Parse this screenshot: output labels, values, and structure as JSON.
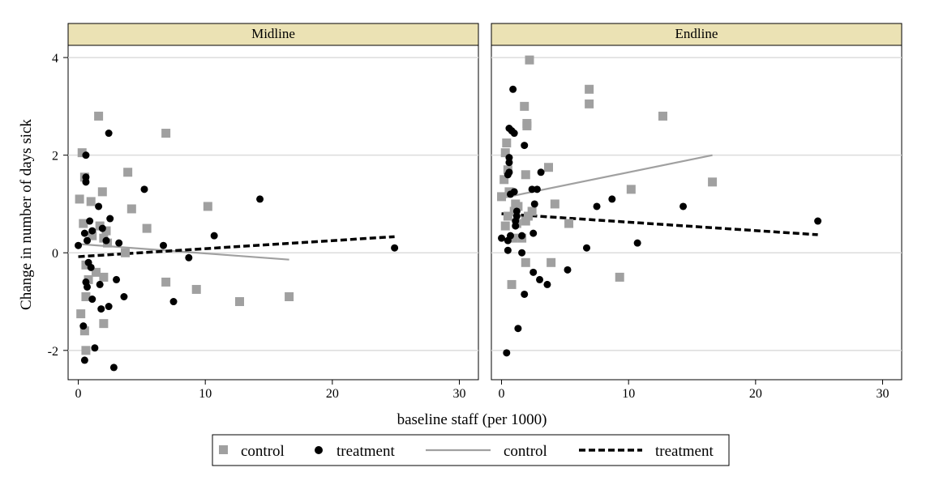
{
  "chart_data": {
    "type": "scatter",
    "xlabel": "baseline staff (per 1000)",
    "ylabel": "Change in number of days sick",
    "xlim": [
      -0.8,
      31.5
    ],
    "ylim": [
      -2.6,
      4.25
    ],
    "xticks": [
      0,
      10,
      20,
      30
    ],
    "yticks": [
      -2,
      0,
      2,
      4
    ],
    "grid": "horizontal",
    "legend_position": "bottom",
    "legend": {
      "items": [
        {
          "label": "control",
          "kind": "marker-square",
          "color": "#a0a0a0"
        },
        {
          "label": "treatment",
          "kind": "marker-circle",
          "color": "#000000"
        },
        {
          "label": "control",
          "kind": "line-solid",
          "color": "#a0a0a0"
        },
        {
          "label": "treatment",
          "kind": "line-dashed",
          "color": "#000000"
        }
      ]
    },
    "colors": {
      "control": "#a0a0a0",
      "treatment": "#000000",
      "strip_fill": "#ebe2b4",
      "grid": "#dcdcdc"
    },
    "panels": [
      {
        "title": "Midline",
        "control_points": [
          {
            "x": 0.1,
            "y": 1.1
          },
          {
            "x": 0.3,
            "y": 2.05
          },
          {
            "x": 0.5,
            "y": 1.55
          },
          {
            "x": 0.4,
            "y": 0.6
          },
          {
            "x": 0.6,
            "y": -0.25
          },
          {
            "x": 0.6,
            "y": -0.9
          },
          {
            "x": 0.5,
            "y": -1.6
          },
          {
            "x": 0.6,
            "y": -2.0
          },
          {
            "x": 0.2,
            "y": -1.25
          },
          {
            "x": 0.8,
            "y": -0.55
          },
          {
            "x": 1.0,
            "y": 1.05
          },
          {
            "x": 1.1,
            "y": 0.35
          },
          {
            "x": 1.4,
            "y": -0.4
          },
          {
            "x": 1.6,
            "y": 2.8
          },
          {
            "x": 1.7,
            "y": 0.55
          },
          {
            "x": 1.9,
            "y": 1.25
          },
          {
            "x": 2.0,
            "y": 0.3
          },
          {
            "x": 2.0,
            "y": -0.5
          },
          {
            "x": 2.0,
            "y": -1.45
          },
          {
            "x": 2.2,
            "y": 0.45
          },
          {
            "x": 2.3,
            "y": 0.2
          },
          {
            "x": 3.7,
            "y": 0.0
          },
          {
            "x": 3.9,
            "y": 1.65
          },
          {
            "x": 4.2,
            "y": 0.9
          },
          {
            "x": 5.4,
            "y": 0.5
          },
          {
            "x": 6.9,
            "y": 2.45
          },
          {
            "x": 6.9,
            "y": -0.6
          },
          {
            "x": 9.3,
            "y": -0.75
          },
          {
            "x": 10.2,
            "y": 0.95
          },
          {
            "x": 12.7,
            "y": -1.0
          },
          {
            "x": 16.6,
            "y": -0.9
          }
        ],
        "treatment_points": [
          {
            "x": 0.0,
            "y": 0.15
          },
          {
            "x": 0.4,
            "y": -1.5
          },
          {
            "x": 0.5,
            "y": -2.2
          },
          {
            "x": 0.5,
            "y": 0.4
          },
          {
            "x": 0.6,
            "y": 1.55
          },
          {
            "x": 0.6,
            "y": 1.45
          },
          {
            "x": 0.6,
            "y": 2.0
          },
          {
            "x": 0.6,
            "y": -0.6
          },
          {
            "x": 0.7,
            "y": 0.25
          },
          {
            "x": 0.7,
            "y": -0.7
          },
          {
            "x": 0.8,
            "y": -0.2
          },
          {
            "x": 0.9,
            "y": 0.65
          },
          {
            "x": 1.0,
            "y": -0.3
          },
          {
            "x": 1.1,
            "y": 0.45
          },
          {
            "x": 1.1,
            "y": -0.95
          },
          {
            "x": 1.3,
            "y": -1.95
          },
          {
            "x": 1.6,
            "y": 0.95
          },
          {
            "x": 1.7,
            "y": -0.65
          },
          {
            "x": 1.8,
            "y": -1.15
          },
          {
            "x": 1.9,
            "y": 0.5
          },
          {
            "x": 2.2,
            "y": 0.25
          },
          {
            "x": 2.4,
            "y": 2.45
          },
          {
            "x": 2.4,
            "y": -1.1
          },
          {
            "x": 2.5,
            "y": 0.7
          },
          {
            "x": 2.8,
            "y": -2.35
          },
          {
            "x": 3.0,
            "y": -0.55
          },
          {
            "x": 3.2,
            "y": 0.2
          },
          {
            "x": 3.6,
            "y": -0.9
          },
          {
            "x": 5.2,
            "y": 1.3
          },
          {
            "x": 6.7,
            "y": 0.15
          },
          {
            "x": 7.5,
            "y": -1.0
          },
          {
            "x": 8.7,
            "y": -0.1
          },
          {
            "x": 10.7,
            "y": 0.35
          },
          {
            "x": 14.3,
            "y": 1.1
          },
          {
            "x": 24.9,
            "y": 0.1
          }
        ],
        "control_fit": {
          "x": [
            0.0,
            16.6
          ],
          "y": [
            0.18,
            -0.14
          ]
        },
        "treatment_fit": {
          "x": [
            0.0,
            24.9
          ],
          "y": [
            -0.08,
            0.33
          ]
        }
      },
      {
        "title": "Endline",
        "control_points": [
          {
            "x": 0.0,
            "y": 1.15
          },
          {
            "x": 0.2,
            "y": 1.5
          },
          {
            "x": 0.3,
            "y": 2.05
          },
          {
            "x": 0.4,
            "y": 2.25
          },
          {
            "x": 0.5,
            "y": 1.7
          },
          {
            "x": 0.3,
            "y": 0.55
          },
          {
            "x": 0.5,
            "y": 0.75
          },
          {
            "x": 0.6,
            "y": 1.25
          },
          {
            "x": 0.8,
            "y": -0.65
          },
          {
            "x": 0.9,
            "y": 0.3
          },
          {
            "x": 1.0,
            "y": 0.85
          },
          {
            "x": 1.1,
            "y": 1.0
          },
          {
            "x": 1.2,
            "y": 0.6
          },
          {
            "x": 1.3,
            "y": 0.95
          },
          {
            "x": 1.6,
            "y": 0.3
          },
          {
            "x": 1.8,
            "y": 3.0
          },
          {
            "x": 1.9,
            "y": 1.6
          },
          {
            "x": 1.9,
            "y": 0.65
          },
          {
            "x": 1.9,
            "y": -0.2
          },
          {
            "x": 2.0,
            "y": 2.65
          },
          {
            "x": 2.0,
            "y": 2.6
          },
          {
            "x": 2.1,
            "y": 0.75
          },
          {
            "x": 2.2,
            "y": 3.95
          },
          {
            "x": 2.4,
            "y": 0.85
          },
          {
            "x": 3.7,
            "y": 1.75
          },
          {
            "x": 3.9,
            "y": -0.2
          },
          {
            "x": 4.2,
            "y": 1.0
          },
          {
            "x": 5.3,
            "y": 0.6
          },
          {
            "x": 6.9,
            "y": 3.35
          },
          {
            "x": 6.9,
            "y": 3.05
          },
          {
            "x": 9.3,
            "y": -0.5
          },
          {
            "x": 10.2,
            "y": 1.3
          },
          {
            "x": 12.7,
            "y": 2.8
          },
          {
            "x": 16.6,
            "y": 1.45
          }
        ],
        "treatment_points": [
          {
            "x": 0.0,
            "y": 0.3
          },
          {
            "x": 0.4,
            "y": -2.05
          },
          {
            "x": 0.5,
            "y": 0.05
          },
          {
            "x": 0.5,
            "y": 0.25
          },
          {
            "x": 0.5,
            "y": 1.6
          },
          {
            "x": 0.6,
            "y": 2.55
          },
          {
            "x": 0.6,
            "y": 1.85
          },
          {
            "x": 0.6,
            "y": 1.95
          },
          {
            "x": 0.6,
            "y": 1.65
          },
          {
            "x": 0.7,
            "y": 0.35
          },
          {
            "x": 0.7,
            "y": 1.2
          },
          {
            "x": 0.8,
            "y": 2.5
          },
          {
            "x": 0.9,
            "y": 3.35
          },
          {
            "x": 1.0,
            "y": 2.45
          },
          {
            "x": 1.0,
            "y": 1.25
          },
          {
            "x": 1.1,
            "y": 0.65
          },
          {
            "x": 1.1,
            "y": 0.55
          },
          {
            "x": 1.2,
            "y": 0.75
          },
          {
            "x": 1.2,
            "y": 0.85
          },
          {
            "x": 1.3,
            "y": -1.55
          },
          {
            "x": 1.6,
            "y": 0.35
          },
          {
            "x": 1.6,
            "y": 0.0
          },
          {
            "x": 1.8,
            "y": 2.2
          },
          {
            "x": 1.8,
            "y": -0.85
          },
          {
            "x": 2.4,
            "y": 1.3
          },
          {
            "x": 2.5,
            "y": 0.4
          },
          {
            "x": 2.5,
            "y": -0.4
          },
          {
            "x": 2.6,
            "y": 1.0
          },
          {
            "x": 2.8,
            "y": 1.3
          },
          {
            "x": 3.0,
            "y": -0.55
          },
          {
            "x": 3.1,
            "y": 1.65
          },
          {
            "x": 3.6,
            "y": -0.65
          },
          {
            "x": 5.2,
            "y": -0.35
          },
          {
            "x": 6.7,
            "y": 0.1
          },
          {
            "x": 7.5,
            "y": 0.95
          },
          {
            "x": 8.7,
            "y": 1.1
          },
          {
            "x": 10.7,
            "y": 0.2
          },
          {
            "x": 14.3,
            "y": 0.95
          },
          {
            "x": 24.9,
            "y": 0.65
          }
        ],
        "control_fit": {
          "x": [
            0.0,
            16.6
          ],
          "y": [
            1.12,
            2.0
          ]
        },
        "treatment_fit": {
          "x": [
            0.0,
            24.9
          ],
          "y": [
            0.8,
            0.37
          ]
        }
      }
    ]
  }
}
